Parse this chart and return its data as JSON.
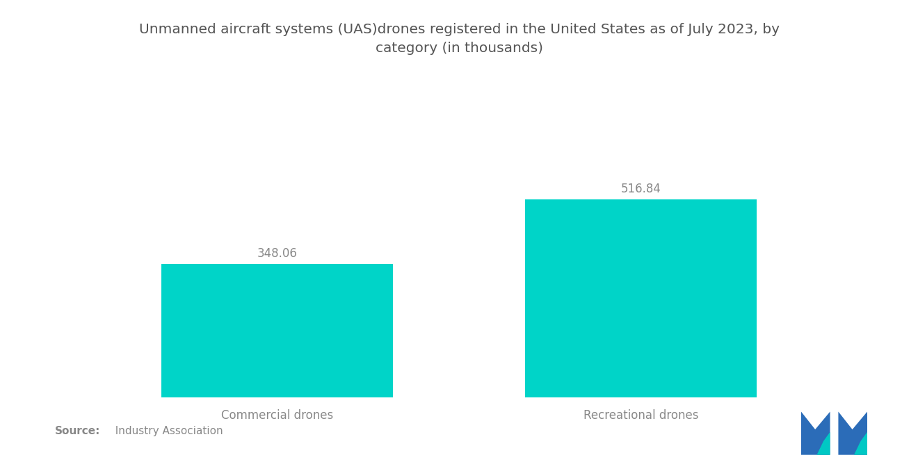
{
  "title_line1": "Unmanned aircraft systems (UAS)drones registered in the United States as of July 2023, by",
  "title_line2": "category (in thousands)",
  "categories": [
    "Commercial drones",
    "Recreational drones"
  ],
  "values": [
    348.06,
    516.84
  ],
  "bar_color": "#00D4C8",
  "value_labels": [
    "348.06",
    "516.84"
  ],
  "background_color": "#ffffff",
  "text_color": "#888888",
  "title_color": "#555555",
  "source_bold": "Source:",
  "source_rest": "  Industry Association",
  "ylim": [
    0,
    700
  ],
  "bar_width": 0.28,
  "x_positions": [
    0.28,
    0.72
  ],
  "xlim": [
    0,
    1
  ],
  "title_fontsize": 14.5,
  "label_fontsize": 12,
  "value_fontsize": 12,
  "source_fontsize": 11,
  "logo_blue": "#2B6CB8",
  "logo_teal": "#00C8C4"
}
